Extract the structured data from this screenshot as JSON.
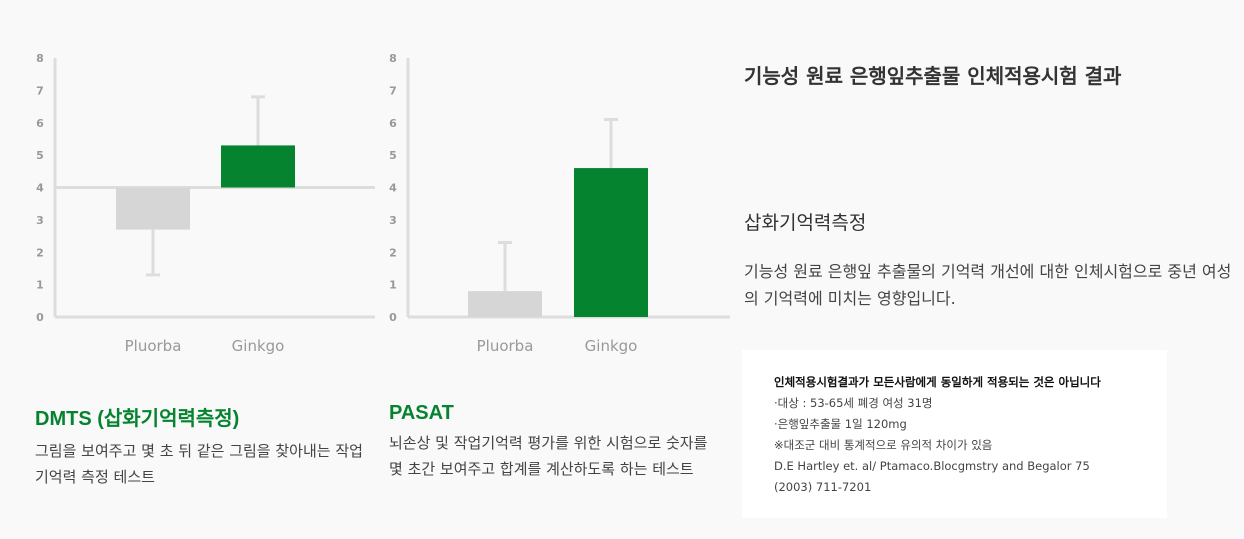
{
  "chart_data": [
    {
      "type": "bar",
      "title": "DMTS (삽화기억력측정)",
      "description": "그림을 보여주고 몇 초 뒤 같은 그림을 찾아내는 작업기억력 측정 테스트",
      "categories": [
        "Pluorba",
        "Ginkgo"
      ],
      "baseline": 4,
      "values": [
        2.7,
        5.3
      ],
      "error_bars": [
        1.3,
        6.8
      ],
      "ylim": [
        0,
        8
      ],
      "yticks": [
        0,
        1,
        2,
        3,
        4,
        5,
        6,
        7,
        8
      ],
      "colors": [
        "#d6d6d6",
        "#05832f"
      ]
    },
    {
      "type": "bar",
      "title": "PASAT",
      "description": "뇌손상 및 작업기억력 평가를 위한 시험으로 숫자를 몇 초간 보여주고 합계를 계산하도록 하는 테스트",
      "categories": [
        "Pluorba",
        "Ginkgo"
      ],
      "baseline": 0,
      "values": [
        0.8,
        4.6
      ],
      "error_bars": [
        2.3,
        6.1
      ],
      "ylim": [
        0,
        8
      ],
      "yticks": [
        0,
        1,
        2,
        3,
        4,
        5,
        6,
        7,
        8
      ],
      "colors": [
        "#d6d6d6",
        "#05832f"
      ]
    }
  ],
  "main": {
    "title": "기능성 원료 은행잎추출물 인체적용시험 결과",
    "subtitle": "삽화기억력측정",
    "description": "기능성 원료 은행잎 추출물의 기억력 개선에 대한 인체시험으로 중년 여성의 기억력에 미치는 영향입니다."
  },
  "note": {
    "heading": "인체적용시험결과가 모든사람에게 동일하게 적용되는 것은 아닙니다",
    "lines": [
      "·대상 : 53-65세 폐경 여성 31명",
      "·은행잎추출물 1일 120mg",
      "※대조군 대비 통계적으로 유의적 차이가 있음",
      "D.E Hartley et. al/ Ptamaco.Blocgmstry and Begalor 75",
      "(2003) 711-7201"
    ]
  }
}
